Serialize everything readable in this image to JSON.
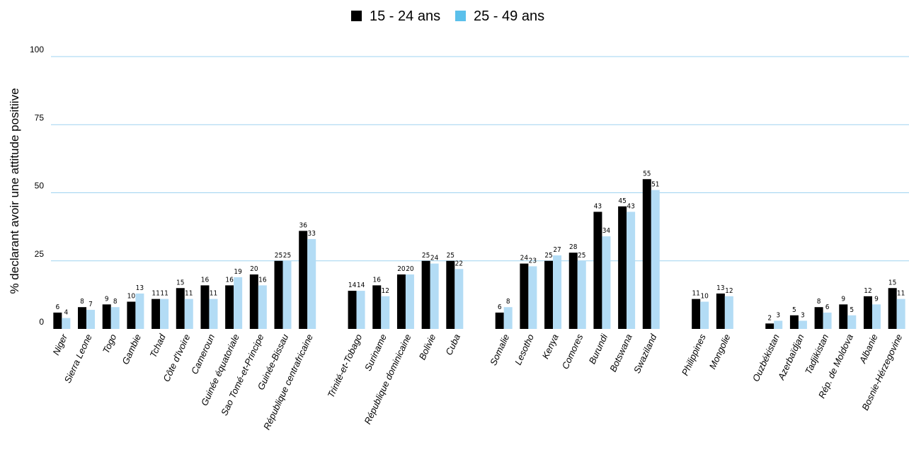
{
  "chart_data": {
    "type": "bar",
    "y_label": "% declarant avoir une attitude positiive",
    "categories": [
      "Niger",
      "Sierra Leone",
      "Togo",
      "Gambie",
      "Tchad",
      "Côte d'Ivoire",
      "Cameroun",
      "Guinée équatoriale",
      "Sao Tomé-et-Principe",
      "Guinée-Bissau",
      "République centrafricaine",
      null,
      "Trinité-et-Tobago",
      "Suriname",
      "République dominicaine",
      "Bolivie",
      "Cuba",
      null,
      "Somalie",
      "Lesotho",
      "Kenya",
      "Comores",
      "Burundi",
      "Botswana",
      "Swaziland",
      null,
      "Philippines",
      "Mongolie",
      null,
      "Ouzbékistan",
      "Azerbaïdjan",
      "Tadjikistan",
      "Rép. de Moldova",
      "Albanie",
      "Bosnie-Hérzegovine"
    ],
    "series": [
      {
        "name": "15 - 24 ans",
        "color": "#000000",
        "values": [
          6,
          8,
          9,
          10,
          11,
          15,
          16,
          16,
          20,
          25,
          36,
          null,
          14,
          16,
          20,
          25,
          25,
          null,
          6,
          24,
          25,
          28,
          43,
          45,
          55,
          null,
          11,
          13,
          null,
          2,
          5,
          8,
          9,
          12,
          15
        ]
      },
      {
        "name": "25 - 49 ans",
        "color": "#b3dcf5",
        "values": [
          4,
          7,
          8,
          13,
          11,
          11,
          11,
          19,
          16,
          25,
          33,
          null,
          14,
          12,
          20,
          24,
          22,
          null,
          8,
          23,
          27,
          25,
          34,
          43,
          51,
          null,
          10,
          12,
          null,
          3,
          3,
          6,
          5,
          9,
          11
        ]
      }
    ],
    "ylim": [
      0,
      100
    ],
    "yticks": [
      0,
      25,
      50,
      75,
      100
    ],
    "grid": true,
    "legend": "top"
  }
}
